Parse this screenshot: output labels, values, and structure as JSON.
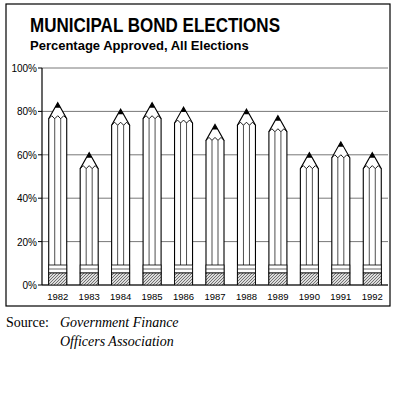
{
  "chart_data": {
    "type": "bar",
    "title": "MUNICIPAL BOND ELECTIONS",
    "subtitle": "Percentage Approved, All Elections",
    "categories": [
      "1982",
      "1983",
      "1984",
      "1985",
      "1986",
      "1987",
      "1988",
      "1989",
      "1990",
      "1991",
      "1992"
    ],
    "values": [
      84,
      61,
      81,
      84,
      82,
      74,
      81,
      78,
      61,
      66,
      61
    ],
    "color": "#ffffff",
    "ylim": [
      0,
      100
    ],
    "yticks": [
      {
        "value": 0,
        "label": "0%"
      },
      {
        "value": 20,
        "label": "20%"
      },
      {
        "value": 40,
        "label": "40%"
      },
      {
        "value": 60,
        "label": "60%"
      },
      {
        "value": 80,
        "label": "80%"
      },
      {
        "value": 100,
        "label": "100%"
      }
    ],
    "grid": true,
    "source_label": "Source:",
    "source_lines": [
      "Government Finance",
      "Officers Association"
    ]
  }
}
